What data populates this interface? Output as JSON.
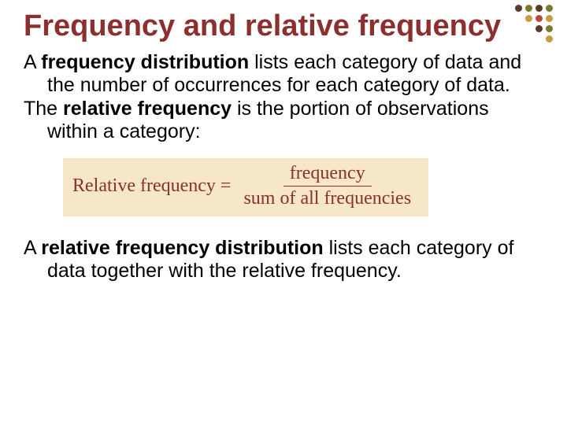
{
  "colors": {
    "title": "#8b2f2f",
    "body": "#000000",
    "formula_bg": "#f6e7c9",
    "formula_text": "#8b2f2f",
    "frac_line": "#8b2f2f",
    "dot_dark": "#5b3a2a",
    "dot_olive": "#7a7a2f",
    "dot_gold": "#c89b3c",
    "dot_red": "#b84a3a"
  },
  "title": "Frequency and relative frequency",
  "p1": {
    "pre": "A ",
    "term": "frequency distribution",
    "post": " lists each category of data and the number of occurrences for each category of data."
  },
  "p2": {
    "pre": "The ",
    "term": "relative frequency",
    "post": " is the portion of observations within a category:"
  },
  "formula": {
    "lhs": "Relative frequency =",
    "numerator": "frequency",
    "denominator": "sum of all frequencies"
  },
  "p3": {
    "pre": "A ",
    "term": "relative frequency distribution",
    "post": " lists each category of data together with the relative frequency."
  }
}
